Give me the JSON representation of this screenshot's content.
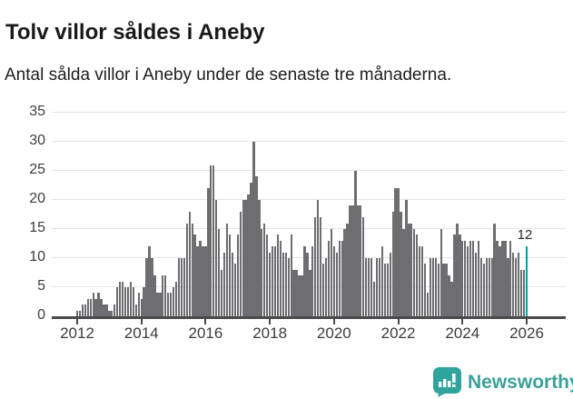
{
  "header": {
    "title": "Tolv villor såldes i Aneby",
    "subtitle": "Antal sålda villor i Aneby under de senaste tre månaderna."
  },
  "chart_data": {
    "type": "bar",
    "title": "Tolv villor såldes i Aneby",
    "subtitle": "Antal sålda villor i Aneby under de senaste tre månaderna.",
    "xlabel": "",
    "ylabel": "",
    "frequency": "monthly",
    "x_start": "2012-01",
    "values": [
      1,
      1,
      2,
      2,
      3,
      3,
      4,
      3,
      4,
      3,
      2,
      2,
      1,
      1,
      2,
      5,
      6,
      6,
      5,
      5,
      6,
      5,
      2,
      4,
      3,
      5,
      10,
      12,
      10,
      7,
      4,
      4,
      7,
      7,
      4,
      4,
      5,
      6,
      10,
      10,
      10,
      16,
      18,
      16,
      14,
      12,
      13,
      12,
      12,
      22,
      26,
      26,
      20,
      15,
      8,
      11,
      16,
      14,
      11,
      9,
      14,
      18,
      20,
      20,
      21,
      23,
      30,
      24,
      20,
      15,
      16,
      14,
      11,
      12,
      12,
      14,
      13,
      11,
      11,
      10,
      14,
      8,
      8,
      7,
      7,
      12,
      11,
      8,
      12,
      17,
      20,
      17,
      9,
      10,
      13,
      15,
      12,
      11,
      13,
      13,
      15,
      16,
      19,
      19,
      25,
      19,
      19,
      17,
      10,
      10,
      10,
      6,
      10,
      10,
      12,
      9,
      9,
      11,
      18,
      22,
      22,
      18,
      15,
      20,
      16,
      16,
      15,
      14,
      12,
      12,
      9,
      4,
      10,
      10,
      10,
      9,
      15,
      9,
      9,
      7,
      6,
      14,
      16,
      14,
      13,
      13,
      12,
      13,
      13,
      11,
      13,
      10,
      9,
      10,
      10,
      10,
      16,
      13,
      12,
      13,
      13,
      10,
      13,
      11,
      10,
      11,
      8,
      8,
      12
    ],
    "highlight": {
      "index": 168,
      "value": 12,
      "label": "12",
      "color": "#00a49c"
    },
    "bar_color": "#6d6d72",
    "grid": true,
    "legend": "none",
    "ylim": [
      0,
      35
    ],
    "yticks": [
      0,
      5,
      10,
      15,
      20,
      25,
      30,
      35
    ],
    "xticks": [
      {
        "label": "2012",
        "month_index": 0
      },
      {
        "label": "2014",
        "month_index": 24
      },
      {
        "label": "2016",
        "month_index": 48
      },
      {
        "label": "2018",
        "month_index": 72
      },
      {
        "label": "2020",
        "month_index": 96
      },
      {
        "label": "2022",
        "month_index": 120
      },
      {
        "label": "2024",
        "month_index": 144
      },
      {
        "label": "2026",
        "month_index": 168
      }
    ]
  },
  "footer": {
    "brand": "Newsworthy",
    "brand_color": "#3aa09a",
    "logo_color": "#2fa49d"
  }
}
